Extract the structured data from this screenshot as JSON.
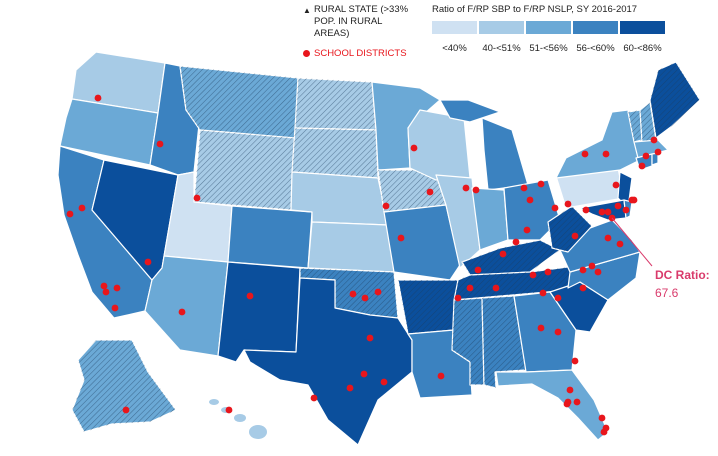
{
  "legend": {
    "rural_label": "RURAL STATE (>33% POP. IN RURAL AREAS)",
    "rural_marker": "triangle-icon",
    "district_label": "SCHOOL DISTRICTS",
    "district_marker": "red-dot-icon",
    "ratio_title": "Ratio of F/RP SBP to F/RP NSLP, SY 2016-2017",
    "bins": [
      {
        "label": "<40%",
        "color": "#cfe1f2"
      },
      {
        "label": "40-<51%",
        "color": "#a7cbe6"
      },
      {
        "label": "51-<56%",
        "color": "#6ba9d6"
      },
      {
        "label": "56-<60%",
        "color": "#3b82c0"
      },
      {
        "label": "60-<86%",
        "color": "#0b4f9c"
      }
    ]
  },
  "callout": {
    "label": "DC Ratio:",
    "value": "67.6"
  },
  "colors": {
    "district": "#e8161c",
    "callout": "#d93a6b",
    "hatch": "#1b3a5c"
  }
}
